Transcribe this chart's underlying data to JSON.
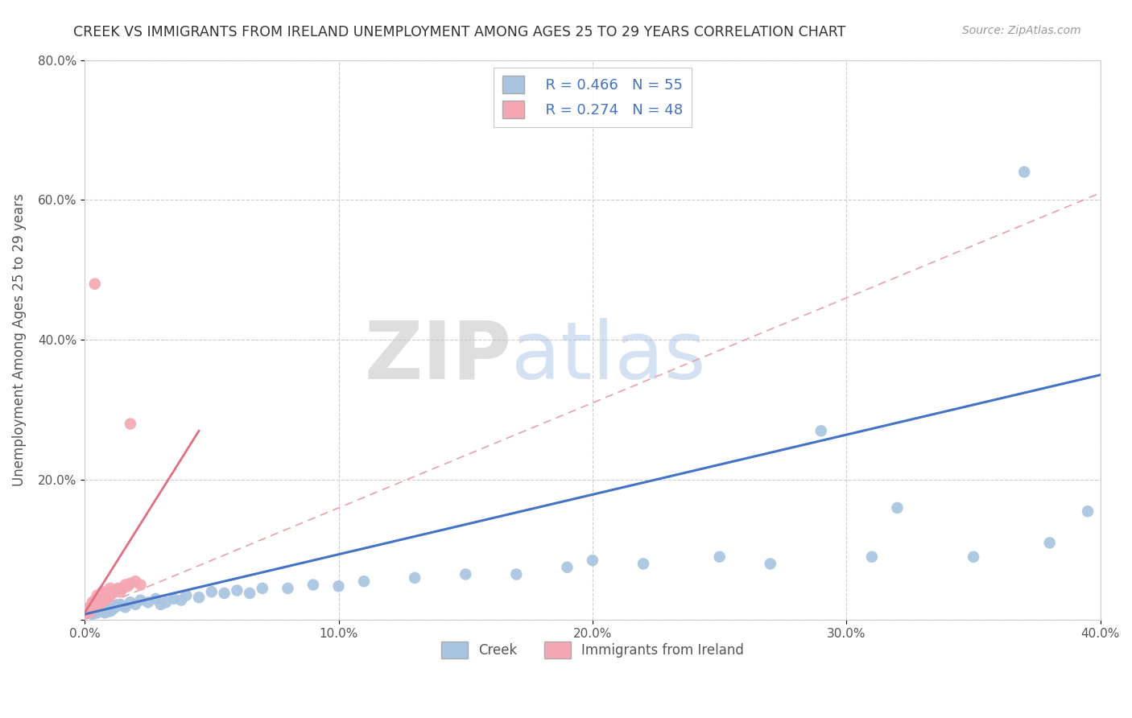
{
  "title": "CREEK VS IMMIGRANTS FROM IRELAND UNEMPLOYMENT AMONG AGES 25 TO 29 YEARS CORRELATION CHART",
  "source": "Source: ZipAtlas.com",
  "ylabel": "Unemployment Among Ages 25 to 29 years",
  "xlim": [
    0.0,
    0.4
  ],
  "ylim": [
    0.0,
    0.8
  ],
  "xticks": [
    0.0,
    0.1,
    0.2,
    0.3,
    0.4
  ],
  "yticks": [
    0.0,
    0.2,
    0.4,
    0.6,
    0.8
  ],
  "xtick_labels": [
    "0.0%",
    "10.0%",
    "20.0%",
    "30.0%",
    "40.0%"
  ],
  "ytick_labels": [
    "",
    "20.0%",
    "40.0%",
    "60.0%",
    "80.0%"
  ],
  "creek_color": "#a8c4e0",
  "ireland_color": "#f4a7b2",
  "creek_line_color": "#4472c4",
  "ireland_line_color": "#e07080",
  "ireland_dash_color": "#e8a0a8",
  "creek_R": 0.466,
  "creek_N": 55,
  "ireland_R": 0.274,
  "ireland_N": 48,
  "watermark_zip": "ZIP",
  "watermark_atlas": "atlas",
  "background_color": "#ffffff",
  "creek_scatter": [
    [
      0.002,
      0.01
    ],
    [
      0.003,
      0.008
    ],
    [
      0.003,
      0.012
    ],
    [
      0.004,
      0.01
    ],
    [
      0.005,
      0.01
    ],
    [
      0.005,
      0.012
    ],
    [
      0.006,
      0.015
    ],
    [
      0.007,
      0.012
    ],
    [
      0.007,
      0.015
    ],
    [
      0.008,
      0.01
    ],
    [
      0.008,
      0.015
    ],
    [
      0.009,
      0.018
    ],
    [
      0.01,
      0.012
    ],
    [
      0.01,
      0.015
    ],
    [
      0.011,
      0.015
    ],
    [
      0.012,
      0.018
    ],
    [
      0.013,
      0.02
    ],
    [
      0.014,
      0.022
    ],
    [
      0.015,
      0.02
    ],
    [
      0.016,
      0.018
    ],
    [
      0.018,
      0.025
    ],
    [
      0.02,
      0.022
    ],
    [
      0.022,
      0.028
    ],
    [
      0.025,
      0.025
    ],
    [
      0.028,
      0.03
    ],
    [
      0.03,
      0.022
    ],
    [
      0.032,
      0.025
    ],
    [
      0.035,
      0.03
    ],
    [
      0.038,
      0.028
    ],
    [
      0.04,
      0.035
    ],
    [
      0.045,
      0.032
    ],
    [
      0.05,
      0.04
    ],
    [
      0.055,
      0.038
    ],
    [
      0.06,
      0.042
    ],
    [
      0.065,
      0.038
    ],
    [
      0.07,
      0.045
    ],
    [
      0.08,
      0.045
    ],
    [
      0.09,
      0.05
    ],
    [
      0.1,
      0.048
    ],
    [
      0.11,
      0.055
    ],
    [
      0.13,
      0.06
    ],
    [
      0.15,
      0.065
    ],
    [
      0.17,
      0.065
    ],
    [
      0.19,
      0.075
    ],
    [
      0.2,
      0.085
    ],
    [
      0.22,
      0.08
    ],
    [
      0.25,
      0.09
    ],
    [
      0.27,
      0.08
    ],
    [
      0.29,
      0.27
    ],
    [
      0.31,
      0.09
    ],
    [
      0.32,
      0.16
    ],
    [
      0.35,
      0.09
    ],
    [
      0.37,
      0.64
    ],
    [
      0.38,
      0.11
    ],
    [
      0.395,
      0.155
    ]
  ],
  "ireland_scatter": [
    [
      0.0,
      0.01
    ],
    [
      0.0,
      0.008
    ],
    [
      0.001,
      0.01
    ],
    [
      0.001,
      0.012
    ],
    [
      0.001,
      0.015
    ],
    [
      0.001,
      0.01
    ],
    [
      0.002,
      0.012
    ],
    [
      0.002,
      0.015
    ],
    [
      0.002,
      0.018
    ],
    [
      0.002,
      0.01
    ],
    [
      0.003,
      0.015
    ],
    [
      0.003,
      0.018
    ],
    [
      0.003,
      0.02
    ],
    [
      0.003,
      0.025
    ],
    [
      0.004,
      0.018
    ],
    [
      0.004,
      0.022
    ],
    [
      0.004,
      0.025
    ],
    [
      0.004,
      0.028
    ],
    [
      0.005,
      0.02
    ],
    [
      0.005,
      0.025
    ],
    [
      0.005,
      0.03
    ],
    [
      0.005,
      0.035
    ],
    [
      0.006,
      0.022
    ],
    [
      0.006,
      0.028
    ],
    [
      0.006,
      0.032
    ],
    [
      0.007,
      0.03
    ],
    [
      0.007,
      0.035
    ],
    [
      0.007,
      0.04
    ],
    [
      0.008,
      0.028
    ],
    [
      0.008,
      0.035
    ],
    [
      0.008,
      0.038
    ],
    [
      0.009,
      0.032
    ],
    [
      0.009,
      0.038
    ],
    [
      0.01,
      0.035
    ],
    [
      0.01,
      0.04
    ],
    [
      0.01,
      0.045
    ],
    [
      0.011,
      0.038
    ],
    [
      0.012,
      0.042
    ],
    [
      0.013,
      0.045
    ],
    [
      0.014,
      0.04
    ],
    [
      0.015,
      0.045
    ],
    [
      0.016,
      0.05
    ],
    [
      0.017,
      0.048
    ],
    [
      0.018,
      0.052
    ],
    [
      0.02,
      0.055
    ],
    [
      0.022,
      0.05
    ],
    [
      0.004,
      0.48
    ],
    [
      0.018,
      0.28
    ]
  ],
  "creek_trendline": [
    [
      0.0,
      0.008
    ],
    [
      0.4,
      0.35
    ]
  ],
  "ireland_trendline_solid": [
    [
      0.0,
      0.01
    ],
    [
      0.045,
      0.27
    ]
  ],
  "ireland_trendline_dashed": [
    [
      0.0,
      0.01
    ],
    [
      0.4,
      0.61
    ]
  ]
}
